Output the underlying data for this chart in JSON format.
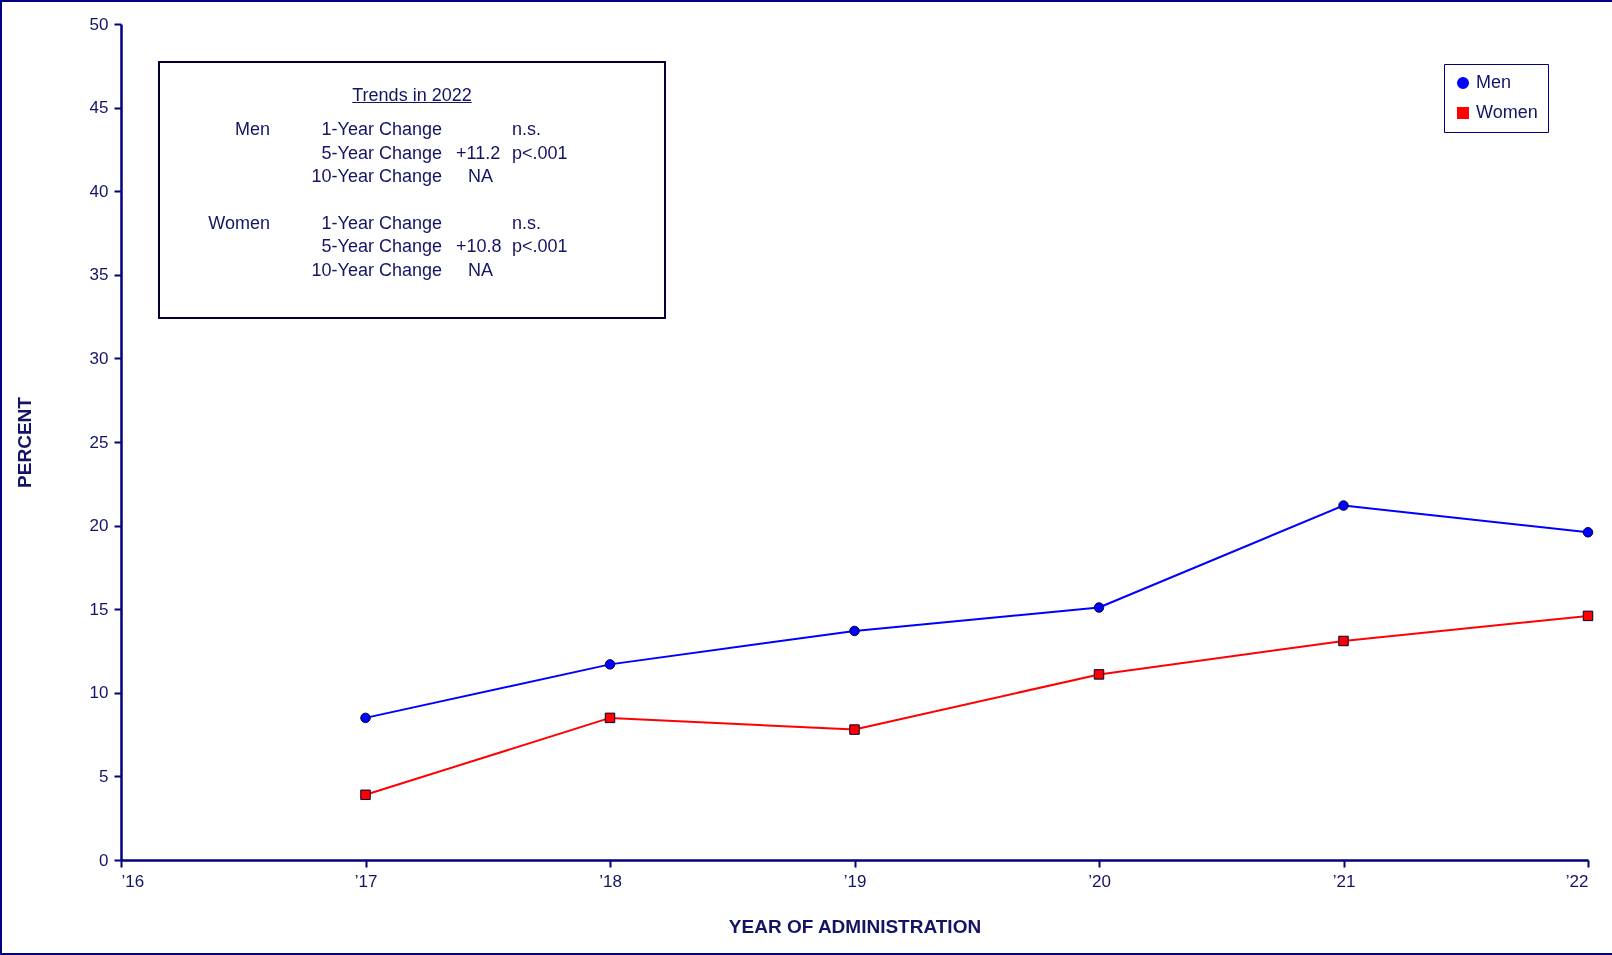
{
  "chart_data": {
    "type": "line",
    "xlabel": "YEAR OF ADMINISTRATION",
    "ylabel": "PERCENT",
    "x": [
      2017,
      2018,
      2019,
      2020,
      2021,
      2022
    ],
    "xlim": [
      2016,
      2022
    ],
    "xticks": [
      {
        "value": 2016,
        "label": "’16"
      },
      {
        "value": 2017,
        "label": "’17"
      },
      {
        "value": 2018,
        "label": "’18"
      },
      {
        "value": 2019,
        "label": "’19"
      },
      {
        "value": 2020,
        "label": "’20"
      },
      {
        "value": 2021,
        "label": "’21"
      },
      {
        "value": 2022,
        "label": "’22"
      }
    ],
    "ylim": [
      0,
      50
    ],
    "yticks": [
      0,
      5,
      10,
      15,
      20,
      25,
      30,
      35,
      40,
      45,
      50
    ],
    "series": [
      {
        "name": "Men",
        "color": "#0000ff",
        "marker": "circle",
        "values": [
          8.5,
          11.7,
          13.7,
          15.1,
          21.2,
          19.6
        ]
      },
      {
        "name": "Women",
        "color": "#ff0000",
        "marker": "square",
        "values": [
          3.9,
          8.5,
          7.8,
          11.1,
          13.1,
          14.6
        ]
      }
    ],
    "legend": "top right",
    "grid": false,
    "annotations": [
      "Trends in 2022",
      "Men",
      "1-Year Change",
      "n.s.",
      "5-Year Change",
      "+11.2",
      "p<.001",
      "10-Year Change",
      "NA",
      "Women",
      "1-Year Change",
      "n.s.",
      "5-Year Change",
      "+10.8",
      "p<.001",
      "10-Year Change",
      "NA"
    ]
  }
}
